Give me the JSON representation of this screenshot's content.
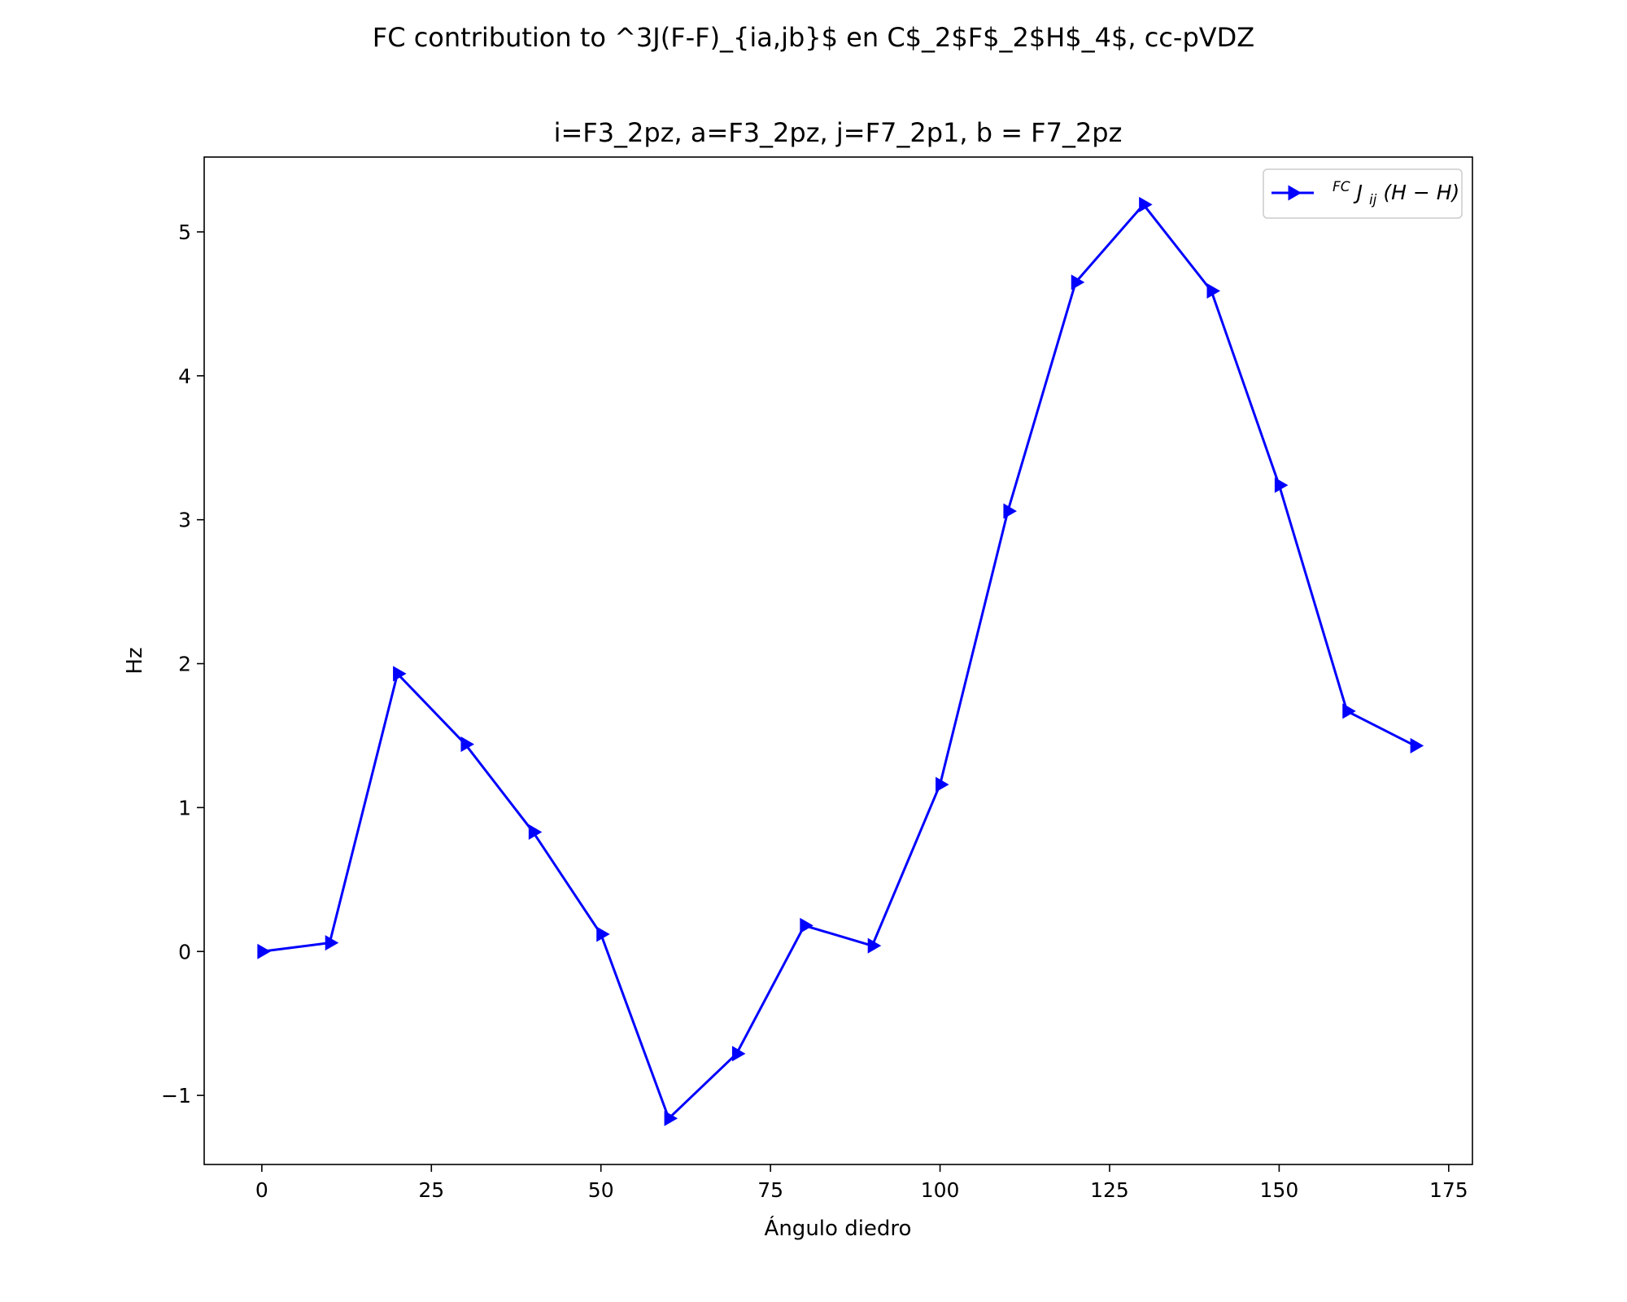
{
  "figure": {
    "suptitle": "FC contribution to ^3J(F-F)_{ia,jb}$ en C$_2$F$_2$H$_4$, cc-pVDZ"
  },
  "chart_data": {
    "type": "line",
    "title": "i=F3_2pz, a=F3_2pz, j=F7_2p1, b = F7_2pz",
    "xlabel": "Ángulo diedro",
    "ylabel": "Hz",
    "xlim": [
      -8.5,
      178.5
    ],
    "ylim": [
      -1.48,
      5.52
    ],
    "xticks": [
      0,
      25,
      50,
      75,
      100,
      125,
      150,
      175
    ],
    "xtick_labels": [
      "0",
      "25",
      "50",
      "75",
      "100",
      "125",
      "150",
      "175"
    ],
    "yticks": [
      -1,
      0,
      1,
      2,
      3,
      4,
      5
    ],
    "ytick_labels": [
      "−1",
      "0",
      "1",
      "2",
      "3",
      "4",
      "5"
    ],
    "grid": false,
    "legend_position": "top-right",
    "series": [
      {
        "name": "FC J ij (H−H)",
        "legend_label": {
          "sup": "FC",
          "main": "J",
          "sub": "ij",
          "rest": "(H − H)"
        },
        "color": "#0000ff",
        "marker": "triangle-right",
        "x": [
          0,
          10,
          20,
          30,
          40,
          50,
          60,
          70,
          80,
          90,
          100,
          110,
          120,
          130,
          140,
          150,
          160,
          170
        ],
        "y": [
          0.0,
          0.06,
          1.93,
          1.44,
          0.83,
          0.12,
          -1.16,
          -0.71,
          0.18,
          0.04,
          1.16,
          3.06,
          4.65,
          5.19,
          4.59,
          3.24,
          1.67,
          1.43
        ]
      }
    ]
  }
}
